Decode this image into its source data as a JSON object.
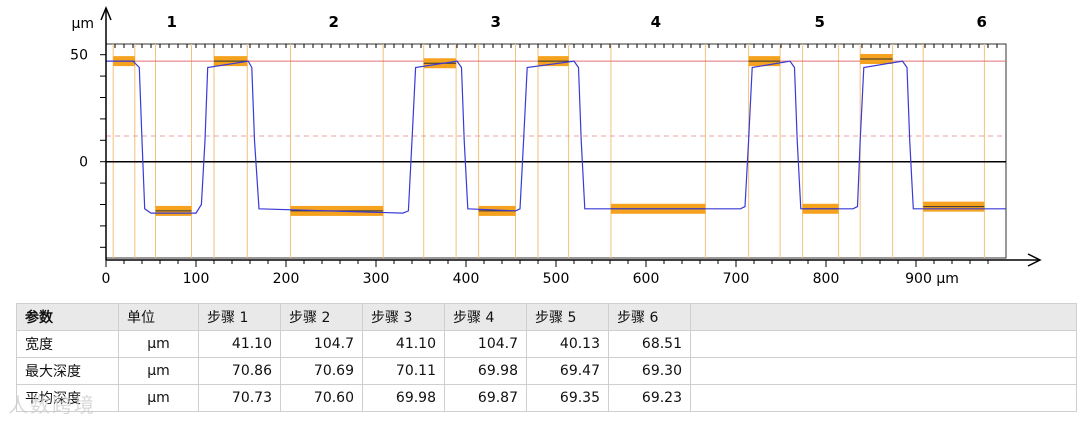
{
  "chart_data": {
    "type": "line",
    "title": "",
    "y_unit_label": "μm",
    "x_unit_label": "μm",
    "xlim": [
      0,
      1000
    ],
    "ylim": [
      -45,
      55
    ],
    "x_ticks": [
      0,
      100,
      200,
      300,
      400,
      500,
      600,
      700,
      800,
      900
    ],
    "x_tick_labels": [
      "0",
      "100",
      "200",
      "300",
      "400",
      "500",
      "600",
      "700",
      "800",
      "900 μm"
    ],
    "y_ticks": [
      50,
      0
    ],
    "y_tick_labels": [
      "50",
      "0"
    ],
    "reference_lines": {
      "upper": 47,
      "lower": 12
    },
    "step_labels": [
      {
        "label": "1",
        "x": 73
      },
      {
        "label": "2",
        "x": 253
      },
      {
        "label": "3",
        "x": 433
      },
      {
        "label": "4",
        "x": 611
      },
      {
        "label": "5",
        "x": 793
      },
      {
        "label": "6",
        "x": 973
      }
    ],
    "profile": {
      "x": [
        0,
        30,
        37,
        40,
        43,
        50,
        100,
        106,
        110,
        113,
        158,
        162,
        165,
        170,
        330,
        336,
        340,
        344,
        390,
        395,
        398,
        402,
        455,
        460,
        464,
        468,
        520,
        525,
        528,
        532,
        705,
        710,
        714,
        718,
        760,
        765,
        768,
        772,
        830,
        835,
        838,
        842,
        885,
        890,
        893,
        897,
        1000
      ],
      "y": [
        47,
        47,
        44,
        10,
        -22,
        -24,
        -24,
        -20,
        10,
        44,
        47,
        44,
        10,
        -22,
        -24,
        -23,
        10,
        44,
        47,
        44,
        10,
        -22,
        -23,
        -22,
        10,
        44,
        47,
        44,
        10,
        -22,
        -22,
        -21,
        10,
        44,
        47,
        44,
        10,
        -22,
        -22,
        -21,
        10,
        44,
        47,
        44,
        10,
        -22,
        -22
      ]
    },
    "measurement_boxes": [
      {
        "x1": 8,
        "x2": 32,
        "y": 47
      },
      {
        "x1": 55,
        "x2": 95,
        "y": -23
      },
      {
        "x1": 120,
        "x2": 157,
        "y": 47
      },
      {
        "x1": 205,
        "x2": 308,
        "y": -23
      },
      {
        "x1": 353,
        "x2": 389,
        "y": 46
      },
      {
        "x1": 414,
        "x2": 455,
        "y": -23
      },
      {
        "x1": 480,
        "x2": 514,
        "y": 47
      },
      {
        "x1": 561,
        "x2": 666,
        "y": -22
      },
      {
        "x1": 714,
        "x2": 749,
        "y": 47
      },
      {
        "x1": 774,
        "x2": 814,
        "y": -22
      },
      {
        "x1": 838,
        "x2": 874,
        "y": 48
      },
      {
        "x1": 908,
        "x2": 976,
        "y": -21
      }
    ],
    "guide_lines_x": [
      8,
      32,
      55,
      95,
      120,
      157,
      205,
      308,
      353,
      389,
      414,
      455,
      480,
      514,
      561,
      666,
      714,
      749,
      774,
      814,
      838,
      874,
      908,
      976
    ]
  },
  "table": {
    "headers": [
      "参数",
      "单位",
      "步骤 1",
      "步骤 2",
      "步骤 3",
      "步骤 4",
      "步骤 5",
      "步骤 6"
    ],
    "rows": [
      {
        "label": "宽度",
        "unit": "μm",
        "values": [
          "41.10",
          "104.7",
          "41.10",
          "104.7",
          "40.13",
          "68.51"
        ]
      },
      {
        "label": "最大深度",
        "unit": "μm",
        "values": [
          "70.86",
          "70.69",
          "70.11",
          "69.98",
          "69.47",
          "69.30"
        ]
      },
      {
        "label": "平均深度",
        "unit": "μm",
        "values": [
          "70.73",
          "70.60",
          "69.98",
          "69.87",
          "69.35",
          "69.23"
        ]
      }
    ]
  },
  "watermark": "人数跨境",
  "colors": {
    "profile": "#3a3ad6",
    "box": "#f5a31f",
    "upper_ref": "#e07070",
    "lower_ref": "#e9a0a0",
    "guide": "#f3c27a",
    "axis": "#111111"
  }
}
